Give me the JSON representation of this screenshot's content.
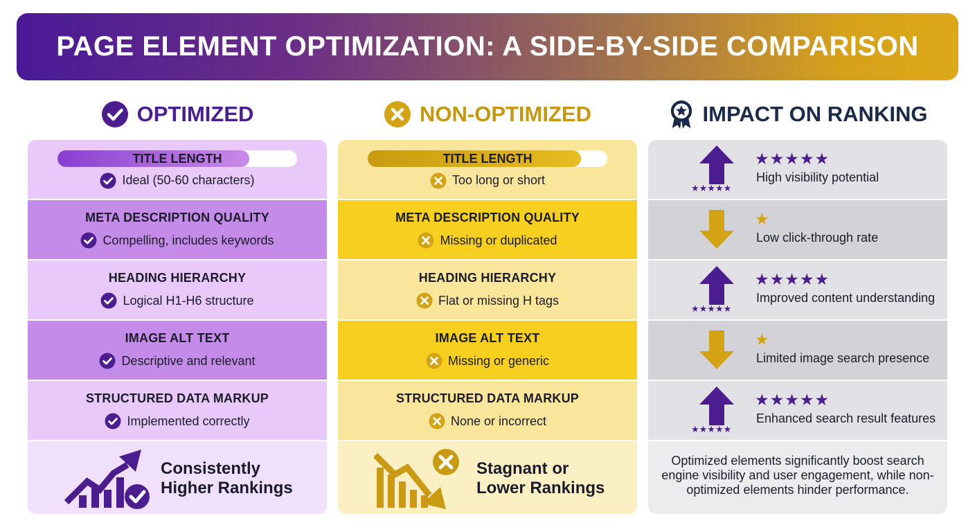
{
  "header": {
    "title": "PAGE ELEMENT OPTIMIZATION: A SIDE-BY-SIDE COMPARISON"
  },
  "columns": {
    "optimized": {
      "heading": "OPTIMIZED",
      "icon": "check-circle-icon",
      "rows": [
        {
          "title": "TITLE LENGTH",
          "desc": "Ideal (50-60 characters)"
        },
        {
          "title": "META DESCRIPTION QUALITY",
          "desc": "Compelling, includes keywords"
        },
        {
          "title": "HEADING HIERARCHY",
          "desc": "Logical H1-H6 structure"
        },
        {
          "title": "IMAGE ALT TEXT",
          "desc": "Descriptive and relevant"
        },
        {
          "title": "STRUCTURED DATA MARKUP",
          "desc": "Implemented correctly"
        }
      ],
      "title_length_fill": 0.8,
      "footer": {
        "line1": "Consistently",
        "line2": "Higher Rankings",
        "icon": "rising-chart-check-icon"
      }
    },
    "non_optimized": {
      "heading": "NON-OPTIMIZED",
      "icon": "x-circle-icon",
      "rows": [
        {
          "title": "TITLE LENGTH",
          "desc": "Too long or short"
        },
        {
          "title": "META DESCRIPTION QUALITY",
          "desc": "Missing or duplicated"
        },
        {
          "title": "HEADING HIERARCHY",
          "desc": "Flat or missing H tags"
        },
        {
          "title": "IMAGE ALT TEXT",
          "desc": "Missing or generic"
        },
        {
          "title": "STRUCTURED DATA MARKUP",
          "desc": "None or incorrect"
        }
      ],
      "title_length_fill": 0.89,
      "footer": {
        "line1": "Stagnant or",
        "line2": "Lower Rankings",
        "icon": "falling-chart-x-icon"
      }
    },
    "impact": {
      "heading": "IMPACT ON RANKING",
      "icon": "award-ribbon-star-icon",
      "rows": [
        {
          "direction": "up",
          "stars": 5,
          "stars_text": "★★★★★",
          "mini_stars": "★★★★★",
          "text": "High visibility potential"
        },
        {
          "direction": "down",
          "stars": 1,
          "stars_text": "★",
          "mini_stars": "",
          "text": "Low click-through rate"
        },
        {
          "direction": "up",
          "stars": 5,
          "stars_text": "★★★★★",
          "mini_stars": "★★★★★",
          "text": "Improved content understanding"
        },
        {
          "direction": "down",
          "stars": 1,
          "stars_text": "★",
          "mini_stars": "",
          "text": "Limited image search presence"
        },
        {
          "direction": "up",
          "stars": 5,
          "stars_text": "★★★★★",
          "mini_stars": "★★★★★",
          "text": "Enhanced search result features"
        }
      ],
      "footer": "Optimized elements significantly boost search engine visibility and user engagement, while non-optimized elements hinder performance."
    }
  },
  "colors": {
    "purple": "#4b1d8f",
    "gold": "#d3a215",
    "navy": "#1a2a48"
  }
}
